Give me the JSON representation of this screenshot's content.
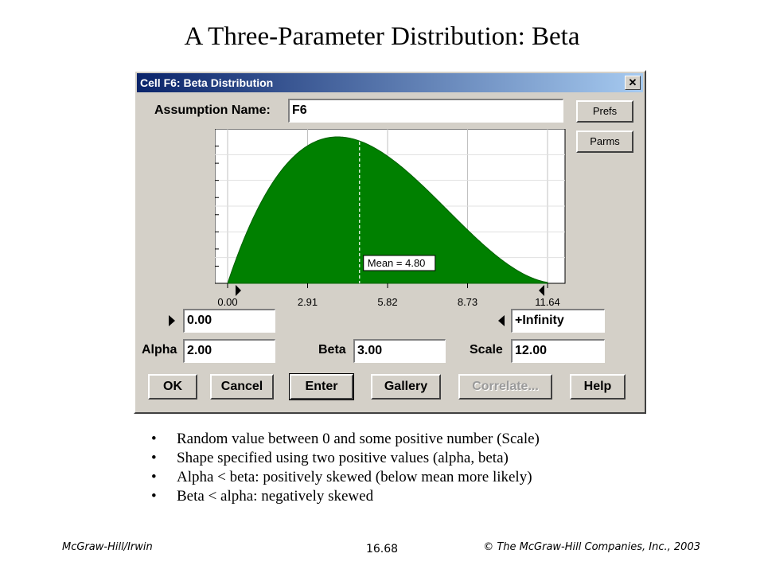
{
  "slide": {
    "title": "A Three-Parameter Distribution: Beta",
    "bullets": [
      "Random value between 0 and some positive number (Scale)",
      "Shape specified using two positive values (alpha, beta)",
      "Alpha < beta: positively skewed (below mean more likely)",
      "Beta < alpha: negatively skewed"
    ],
    "footer_left": "McGraw-Hill/Irwin",
    "footer_center": "16.68",
    "footer_right": "© The McGraw-Hill Companies, Inc., 2003"
  },
  "dialog": {
    "title": "Cell F6:  Beta Distribution",
    "close_glyph": "✕",
    "assumption_label": "Assumption Name:",
    "assumption_value": "F6",
    "prefs_label": "Prefs",
    "parms_label": "Parms",
    "min_value": "0.00",
    "max_value": "+Infinity",
    "alpha_label": "Alpha",
    "alpha_value": "2.00",
    "beta_label": "Beta",
    "beta_value": "3.00",
    "scale_label": "Scale",
    "scale_value": "12.00",
    "buttons": {
      "ok": "OK",
      "cancel": "Cancel",
      "enter": "Enter",
      "gallery": "Gallery",
      "correlate": "Correlate...",
      "help": "Help"
    }
  },
  "chart_data": {
    "type": "area",
    "distribution": "beta",
    "alpha": 2.0,
    "beta": 3.0,
    "scale": 12.0,
    "xlim": [
      0,
      11.64
    ],
    "x_ticks": [
      "0.00",
      "2.91",
      "5.82",
      "8.73",
      "11.64"
    ],
    "x_tick_values": [
      0,
      2.91,
      5.82,
      8.73,
      11.64
    ],
    "mean": 4.8,
    "mean_label": "Mean = 4.80",
    "fill_color": "#008000",
    "grid": true
  }
}
